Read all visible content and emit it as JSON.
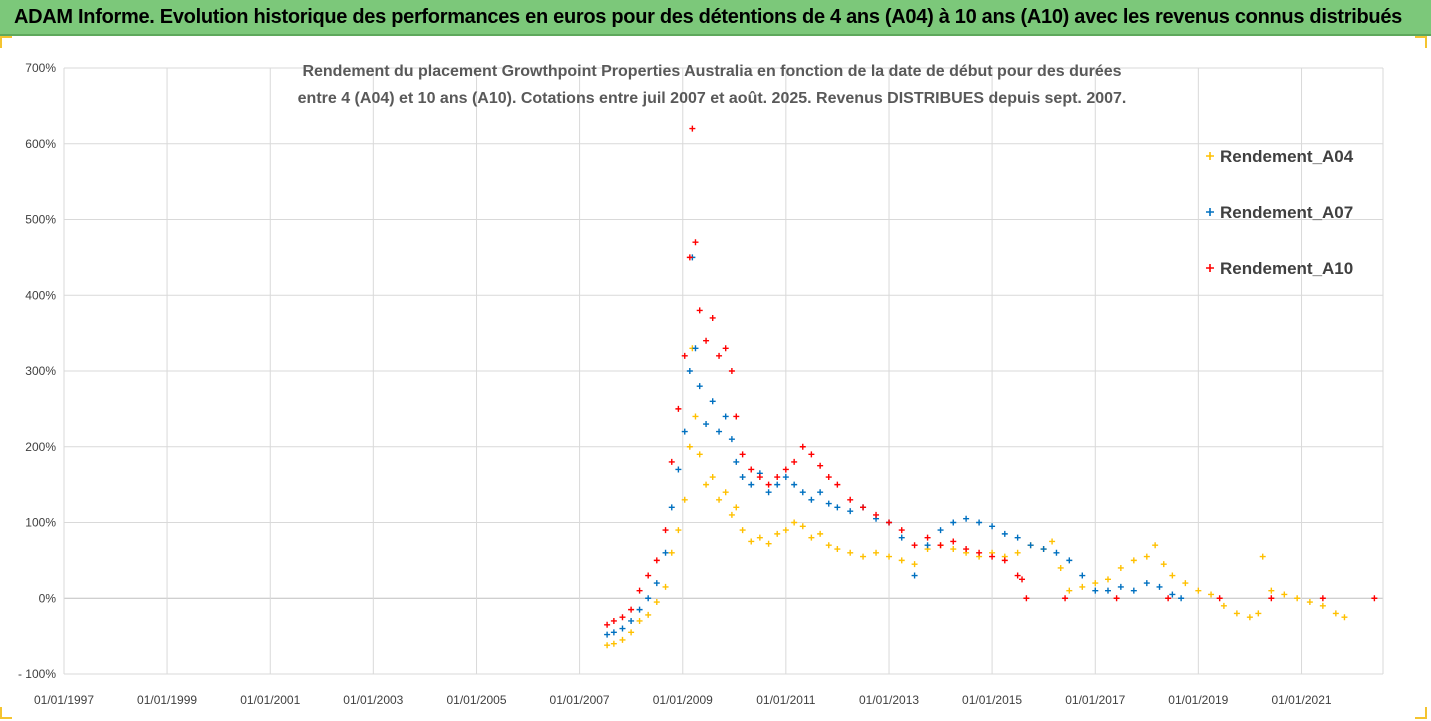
{
  "header": {
    "title": "ADAM Informe. Evolution historique des performances en euros pour des détentions de 4 ans (A04) à 10 ans (A10) avec les revenus connus distribués"
  },
  "chart_data": {
    "type": "scatter",
    "title": "Rendement du placement Growthpoint Properties Australia en fonction de la date de début pour des durées",
    "subtitle": "entre 4 (A04) et 10 ans (A10). Cotations entre juil 2007 et août. 2025. Revenus DISTRIBUES depuis sept. 2007.",
    "xlabel": "",
    "ylabel": "",
    "x_ticks": [
      "01/01/1997",
      "01/01/1999",
      "01/01/2001",
      "01/01/2003",
      "01/01/2005",
      "01/01/2007",
      "01/01/2009",
      "01/01/2011",
      "01/01/2013",
      "01/01/2015",
      "01/01/2017",
      "01/01/2019",
      "01/01/2021"
    ],
    "y_ticks": [
      "700%",
      "600%",
      "500%",
      "400%",
      "300%",
      "200%",
      "100%",
      "0%",
      "- 100%"
    ],
    "xlim": [
      "1997-01-01",
      "2022-08-01"
    ],
    "ylim": [
      -100,
      700
    ],
    "grid": true,
    "legend_position": "right",
    "marker": "+",
    "series": [
      {
        "name": "Rendement_A04",
        "color": "#ffc000",
        "points": [
          [
            "2007-07-15",
            -62
          ],
          [
            "2007-09-01",
            -60
          ],
          [
            "2007-11-01",
            -55
          ],
          [
            "2008-01-01",
            -45
          ],
          [
            "2008-03-01",
            -30
          ],
          [
            "2008-05-01",
            -22
          ],
          [
            "2008-07-01",
            -5
          ],
          [
            "2008-09-01",
            15
          ],
          [
            "2008-10-15",
            60
          ],
          [
            "2008-12-01",
            90
          ],
          [
            "2009-01-15",
            130
          ],
          [
            "2009-02-20",
            200
          ],
          [
            "2009-03-10",
            330
          ],
          [
            "2009-04-01",
            240
          ],
          [
            "2009-05-01",
            190
          ],
          [
            "2009-06-15",
            150
          ],
          [
            "2009-08-01",
            160
          ],
          [
            "2009-09-15",
            130
          ],
          [
            "2009-11-01",
            140
          ],
          [
            "2009-12-15",
            110
          ],
          [
            "2010-01-15",
            120
          ],
          [
            "2010-03-01",
            90
          ],
          [
            "2010-05-01",
            75
          ],
          [
            "2010-07-01",
            80
          ],
          [
            "2010-09-01",
            72
          ],
          [
            "2010-11-01",
            85
          ],
          [
            "2011-01-01",
            90
          ],
          [
            "2011-03-01",
            100
          ],
          [
            "2011-05-01",
            95
          ],
          [
            "2011-07-01",
            80
          ],
          [
            "2011-09-01",
            85
          ],
          [
            "2011-11-01",
            70
          ],
          [
            "2012-01-01",
            65
          ],
          [
            "2012-04-01",
            60
          ],
          [
            "2012-07-01",
            55
          ],
          [
            "2012-10-01",
            60
          ],
          [
            "2013-01-01",
            55
          ],
          [
            "2013-04-01",
            50
          ],
          [
            "2013-07-01",
            45
          ],
          [
            "2013-10-01",
            65
          ],
          [
            "2014-01-01",
            70
          ],
          [
            "2014-04-01",
            65
          ],
          [
            "2014-07-01",
            60
          ],
          [
            "2014-10-01",
            55
          ],
          [
            "2015-01-01",
            60
          ],
          [
            "2015-04-01",
            55
          ],
          [
            "2015-07-01",
            60
          ],
          [
            "2015-10-01",
            70
          ],
          [
            "2016-01-01",
            65
          ],
          [
            "2016-03-01",
            75
          ],
          [
            "2016-05-01",
            40
          ],
          [
            "2016-07-01",
            10
          ],
          [
            "2016-10-01",
            15
          ],
          [
            "2017-01-01",
            20
          ],
          [
            "2017-04-01",
            25
          ],
          [
            "2017-07-01",
            40
          ],
          [
            "2017-10-01",
            50
          ],
          [
            "2018-01-01",
            55
          ],
          [
            "2018-03-01",
            70
          ],
          [
            "2018-05-01",
            45
          ],
          [
            "2018-07-01",
            30
          ],
          [
            "2018-10-01",
            20
          ],
          [
            "2019-01-01",
            10
          ],
          [
            "2019-04-01",
            5
          ],
          [
            "2019-07-01",
            -10
          ],
          [
            "2019-10-01",
            -20
          ],
          [
            "2020-01-01",
            -25
          ],
          [
            "2020-03-01",
            -20
          ],
          [
            "2020-04-01",
            55
          ],
          [
            "2020-06-01",
            10
          ],
          [
            "2020-09-01",
            5
          ],
          [
            "2020-12-01",
            0
          ],
          [
            "2021-03-01",
            -5
          ],
          [
            "2021-06-01",
            -10
          ],
          [
            "2021-09-01",
            -20
          ],
          [
            "2021-11-01",
            -25
          ]
        ]
      },
      {
        "name": "Rendement_A07",
        "color": "#0070c0",
        "points": [
          [
            "2007-07-15",
            -48
          ],
          [
            "2007-09-01",
            -45
          ],
          [
            "2007-11-01",
            -40
          ],
          [
            "2008-01-01",
            -30
          ],
          [
            "2008-03-01",
            -15
          ],
          [
            "2008-05-01",
            0
          ],
          [
            "2008-07-01",
            20
          ],
          [
            "2008-09-01",
            60
          ],
          [
            "2008-10-15",
            120
          ],
          [
            "2008-12-01",
            170
          ],
          [
            "2009-01-15",
            220
          ],
          [
            "2009-02-20",
            300
          ],
          [
            "2009-03-10",
            450
          ],
          [
            "2009-04-01",
            330
          ],
          [
            "2009-05-01",
            280
          ],
          [
            "2009-06-15",
            230
          ],
          [
            "2009-08-01",
            260
          ],
          [
            "2009-09-15",
            220
          ],
          [
            "2009-11-01",
            240
          ],
          [
            "2009-12-15",
            210
          ],
          [
            "2010-01-15",
            180
          ],
          [
            "2010-03-01",
            160
          ],
          [
            "2010-05-01",
            150
          ],
          [
            "2010-07-01",
            165
          ],
          [
            "2010-09-01",
            140
          ],
          [
            "2010-11-01",
            150
          ],
          [
            "2011-01-01",
            160
          ],
          [
            "2011-03-01",
            150
          ],
          [
            "2011-05-01",
            140
          ],
          [
            "2011-07-01",
            130
          ],
          [
            "2011-09-01",
            140
          ],
          [
            "2011-11-01",
            125
          ],
          [
            "2012-01-01",
            120
          ],
          [
            "2012-04-01",
            115
          ],
          [
            "2012-07-01",
            120
          ],
          [
            "2012-10-01",
            105
          ],
          [
            "2013-01-01",
            100
          ],
          [
            "2013-04-01",
            80
          ],
          [
            "2013-07-01",
            30
          ],
          [
            "2013-10-01",
            70
          ],
          [
            "2014-01-01",
            90
          ],
          [
            "2014-04-01",
            100
          ],
          [
            "2014-07-01",
            105
          ],
          [
            "2014-10-01",
            100
          ],
          [
            "2015-01-01",
            95
          ],
          [
            "2015-04-01",
            85
          ],
          [
            "2015-07-01",
            80
          ],
          [
            "2015-10-01",
            70
          ],
          [
            "2016-01-01",
            65
          ],
          [
            "2016-04-01",
            60
          ],
          [
            "2016-07-01",
            50
          ],
          [
            "2016-10-01",
            30
          ],
          [
            "2017-01-01",
            10
          ],
          [
            "2017-04-01",
            10
          ],
          [
            "2017-07-01",
            15
          ],
          [
            "2017-10-01",
            10
          ],
          [
            "2018-01-01",
            20
          ],
          [
            "2018-04-01",
            15
          ],
          [
            "2018-07-01",
            5
          ],
          [
            "2018-09-01",
            0
          ]
        ]
      },
      {
        "name": "Rendement_A10",
        "color": "#ff0000",
        "points": [
          [
            "2007-07-15",
            -35
          ],
          [
            "2007-09-01",
            -30
          ],
          [
            "2007-11-01",
            -25
          ],
          [
            "2008-01-01",
            -15
          ],
          [
            "2008-03-01",
            10
          ],
          [
            "2008-05-01",
            30
          ],
          [
            "2008-07-01",
            50
          ],
          [
            "2008-09-01",
            90
          ],
          [
            "2008-10-15",
            180
          ],
          [
            "2008-12-01",
            250
          ],
          [
            "2009-01-15",
            320
          ],
          [
            "2009-02-20",
            450
          ],
          [
            "2009-03-10",
            620
          ],
          [
            "2009-04-01",
            470
          ],
          [
            "2009-05-01",
            380
          ],
          [
            "2009-06-15",
            340
          ],
          [
            "2009-08-01",
            370
          ],
          [
            "2009-09-15",
            320
          ],
          [
            "2009-11-01",
            330
          ],
          [
            "2009-12-15",
            300
          ],
          [
            "2010-01-15",
            240
          ],
          [
            "2010-03-01",
            190
          ],
          [
            "2010-05-01",
            170
          ],
          [
            "2010-07-01",
            160
          ],
          [
            "2010-09-01",
            150
          ],
          [
            "2010-11-01",
            160
          ],
          [
            "2011-01-01",
            170
          ],
          [
            "2011-03-01",
            180
          ],
          [
            "2011-05-01",
            200
          ],
          [
            "2011-07-01",
            190
          ],
          [
            "2011-09-01",
            175
          ],
          [
            "2011-11-01",
            160
          ],
          [
            "2012-01-01",
            150
          ],
          [
            "2012-04-01",
            130
          ],
          [
            "2012-07-01",
            120
          ],
          [
            "2012-10-01",
            110
          ],
          [
            "2013-01-01",
            100
          ],
          [
            "2013-04-01",
            90
          ],
          [
            "2013-07-01",
            70
          ],
          [
            "2013-10-01",
            80
          ],
          [
            "2014-01-01",
            70
          ],
          [
            "2014-04-01",
            75
          ],
          [
            "2014-07-01",
            65
          ],
          [
            "2014-10-01",
            60
          ],
          [
            "2015-01-01",
            55
          ],
          [
            "2015-04-01",
            50
          ],
          [
            "2015-07-01",
            30
          ],
          [
            "2015-08-01",
            25
          ],
          [
            "2015-09-01",
            0
          ],
          [
            "2016-06-01",
            0
          ],
          [
            "2017-06-01",
            0
          ],
          [
            "2018-06-01",
            0
          ],
          [
            "2019-06-01",
            0
          ],
          [
            "2020-06-01",
            0
          ],
          [
            "2021-06-01",
            0
          ],
          [
            "2022-06-01",
            0
          ]
        ]
      }
    ]
  }
}
